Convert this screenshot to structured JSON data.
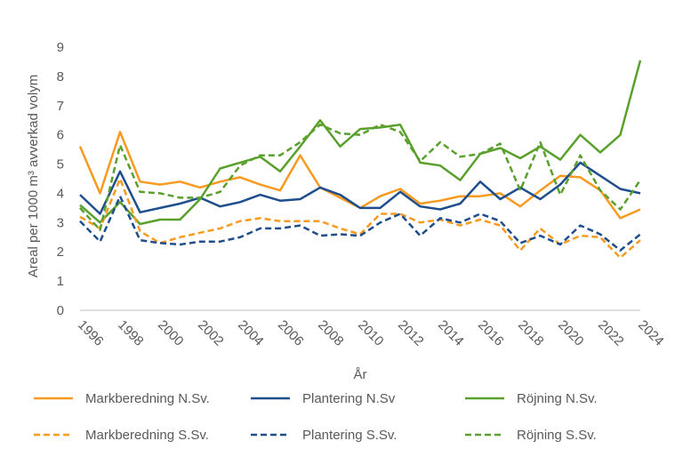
{
  "chart_data": {
    "type": "line",
    "xlabel": "År",
    "ylabel": "Areal per 1000 m³ avverkad volym",
    "ylim": [
      0,
      9
    ],
    "yticks": [
      0,
      1,
      2,
      3,
      4,
      5,
      6,
      7,
      8,
      9
    ],
    "xlim": [
      1996,
      2024
    ],
    "xticks": [
      1996,
      1998,
      2000,
      2002,
      2004,
      2006,
      2008,
      2010,
      2012,
      2014,
      2016,
      2018,
      2020,
      2022,
      2024
    ],
    "grid": false,
    "legend_position": "bottom",
    "x": [
      1996,
      1997,
      1998,
      1999,
      2000,
      2001,
      2002,
      2003,
      2004,
      2005,
      2006,
      2007,
      2008,
      2009,
      2010,
      2011,
      2012,
      2013,
      2014,
      2015,
      2016,
      2017,
      2018,
      2019,
      2020,
      2021,
      2022,
      2023,
      2024
    ],
    "series": [
      {
        "name": "Markberedning N.Sv.",
        "color": "#f79a1f",
        "dash": "solid",
        "values": [
          5.6,
          4.0,
          6.1,
          4.4,
          4.3,
          4.4,
          4.2,
          4.4,
          4.55,
          4.3,
          4.1,
          5.3,
          4.2,
          3.85,
          3.5,
          3.9,
          4.15,
          3.65,
          3.75,
          3.9,
          3.9,
          4.0,
          3.55,
          4.1,
          4.6,
          4.55,
          4.1,
          3.15,
          3.45
        ]
      },
      {
        "name": "Plantering N.Sv",
        "color": "#1f4e8c",
        "dash": "solid",
        "values": [
          3.95,
          3.3,
          4.75,
          3.35,
          3.5,
          3.65,
          3.85,
          3.55,
          3.7,
          3.95,
          3.75,
          3.8,
          4.2,
          3.95,
          3.5,
          3.5,
          4.05,
          3.55,
          3.45,
          3.65,
          4.4,
          3.8,
          4.2,
          3.8,
          4.3,
          5.05,
          4.6,
          4.15,
          4.0
        ]
      },
      {
        "name": "Röjning N.Sv.",
        "color": "#5aa02c",
        "dash": "solid",
        "values": [
          3.6,
          3.0,
          3.7,
          2.95,
          3.1,
          3.1,
          3.8,
          4.85,
          5.05,
          5.25,
          4.75,
          5.6,
          6.5,
          5.6,
          6.2,
          6.25,
          6.35,
          5.05,
          4.95,
          4.45,
          5.35,
          5.55,
          5.2,
          5.6,
          5.15,
          6.0,
          5.4,
          6.0,
          8.55
        ]
      },
      {
        "name": "Markberedning S.Sv.",
        "color": "#f79a1f",
        "dash": "dashed",
        "values": [
          3.2,
          2.8,
          4.5,
          2.7,
          2.3,
          2.5,
          2.65,
          2.8,
          3.05,
          3.15,
          3.05,
          3.05,
          3.05,
          2.8,
          2.6,
          3.3,
          3.3,
          3.0,
          3.1,
          2.9,
          3.1,
          2.9,
          2.05,
          2.8,
          2.25,
          2.55,
          2.5,
          1.8,
          2.4
        ]
      },
      {
        "name": "Plantering S.Sv.",
        "color": "#1f4e8c",
        "dash": "dashed",
        "values": [
          3.05,
          2.35,
          3.9,
          2.4,
          2.3,
          2.25,
          2.35,
          2.35,
          2.5,
          2.8,
          2.8,
          2.9,
          2.55,
          2.6,
          2.55,
          3.0,
          3.3,
          2.55,
          3.15,
          3.0,
          3.3,
          3.05,
          2.3,
          2.55,
          2.25,
          2.9,
          2.6,
          2.05,
          2.6
        ]
      },
      {
        "name": "Röjning S.Sv.",
        "color": "#5aa02c",
        "dash": "dashed",
        "values": [
          3.5,
          2.75,
          5.65,
          4.05,
          4.0,
          3.85,
          3.85,
          4.05,
          4.95,
          5.3,
          5.3,
          5.75,
          6.35,
          6.05,
          6.0,
          6.35,
          6.1,
          5.1,
          5.75,
          5.25,
          5.35,
          5.7,
          4.1,
          5.75,
          3.95,
          5.3,
          4.1,
          3.45,
          4.45
        ]
      }
    ]
  }
}
